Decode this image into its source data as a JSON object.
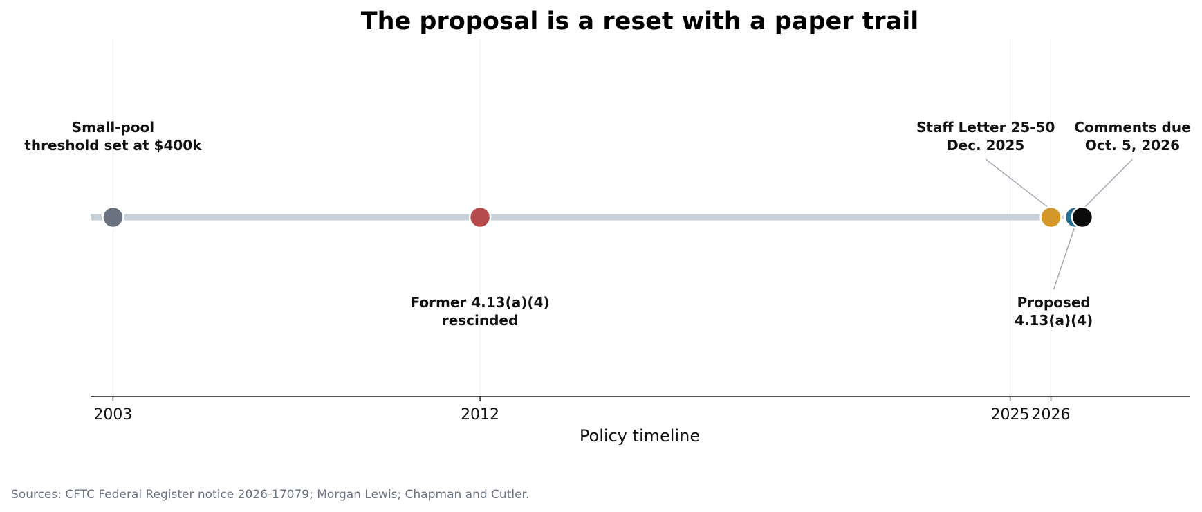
{
  "chart_data": {
    "type": "timeline",
    "title": "The proposal is a reset with a paper trail",
    "xlabel": "Policy timeline",
    "xlim": [
      2002.45,
      2029.4
    ],
    "xticks": [
      {
        "value": 2003,
        "label": "2003"
      },
      {
        "value": 2012,
        "label": "2012"
      },
      {
        "value": 2025,
        "label": "2025"
      },
      {
        "value": 2026,
        "label": "2026"
      }
    ],
    "grid": "vertical lines at ticks",
    "events": [
      {
        "id": "small-pool",
        "x": 2003.0,
        "color": "#6b7280",
        "label_lines": [
          "Small-pool",
          "threshold set at $400k"
        ],
        "label_side": "above",
        "label_x": 2003.0,
        "leader": false
      },
      {
        "id": "rescinded",
        "x": 2012.0,
        "color": "#b54b4b",
        "label_lines": [
          "Former 4.13(a)(4)",
          "rescinded"
        ],
        "label_side": "below",
        "label_x": 2012.0,
        "leader": false
      },
      {
        "id": "staff-letter",
        "x": 2026.0,
        "color": "#d4982a",
        "label_lines": [
          "Staff Letter 25-50",
          "Dec. 2025"
        ],
        "label_side": "above",
        "label_x": 2024.4,
        "leader": true
      },
      {
        "id": "proposed",
        "x": 2026.6,
        "color": "#2a6f8f",
        "label_lines": [
          "Proposed",
          "4.13(a)(4)"
        ],
        "label_side": "below",
        "label_x": 2026.07,
        "leader": true
      },
      {
        "id": "comments-due",
        "x": 2026.77,
        "color": "#0b0b0b",
        "label_lines": [
          "Comments due",
          "Oct. 5, 2026"
        ],
        "label_side": "above",
        "label_x": 2028.0,
        "leader": true
      }
    ],
    "source": "Sources: CFTC Federal Register notice 2026-17079; Morgan Lewis; Chapman and Cutler."
  },
  "colors": {
    "timeline_bar": "#c8d0da",
    "grid": "#ececec",
    "axis": "#111111",
    "leader": "#9ca3af"
  }
}
